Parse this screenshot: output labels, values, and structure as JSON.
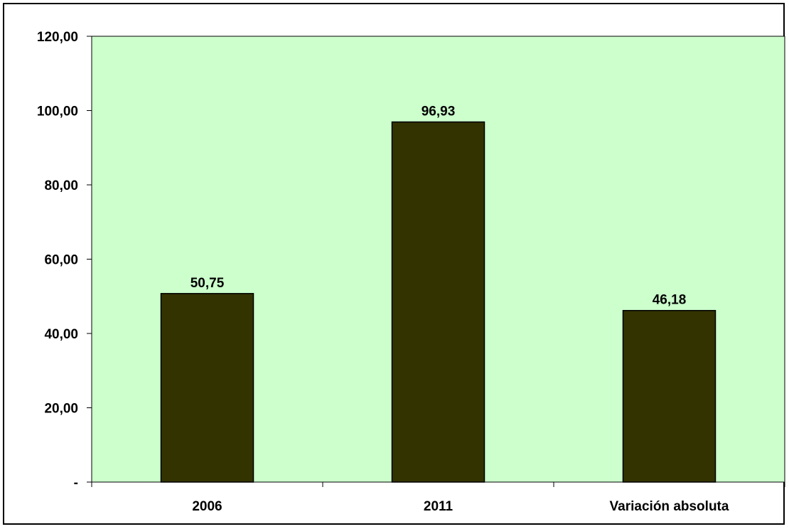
{
  "chart_data": {
    "type": "bar",
    "categories": [
      "2006",
      "2011",
      "Variación absoluta"
    ],
    "values": [
      50.75,
      96.93,
      46.18
    ],
    "data_labels": [
      "50,75",
      "96,93",
      "46,18"
    ],
    "ylim": [
      0,
      120
    ],
    "y_ticks": [
      {
        "value": 0,
        "label": "-"
      },
      {
        "value": 20,
        "label": "20,00"
      },
      {
        "value": 40,
        "label": "40,00"
      },
      {
        "value": 60,
        "label": "60,00"
      },
      {
        "value": 80,
        "label": "80,00"
      },
      {
        "value": 100,
        "label": "100,00"
      },
      {
        "value": 120,
        "label": "120,00"
      }
    ],
    "title": "",
    "xlabel": "",
    "ylabel": "",
    "grid": false,
    "legend": "none",
    "colors": {
      "plot_background": "#ccffcc",
      "bar_fill": "#333300",
      "bar_stroke": "#000000",
      "axis": "#000000"
    }
  }
}
